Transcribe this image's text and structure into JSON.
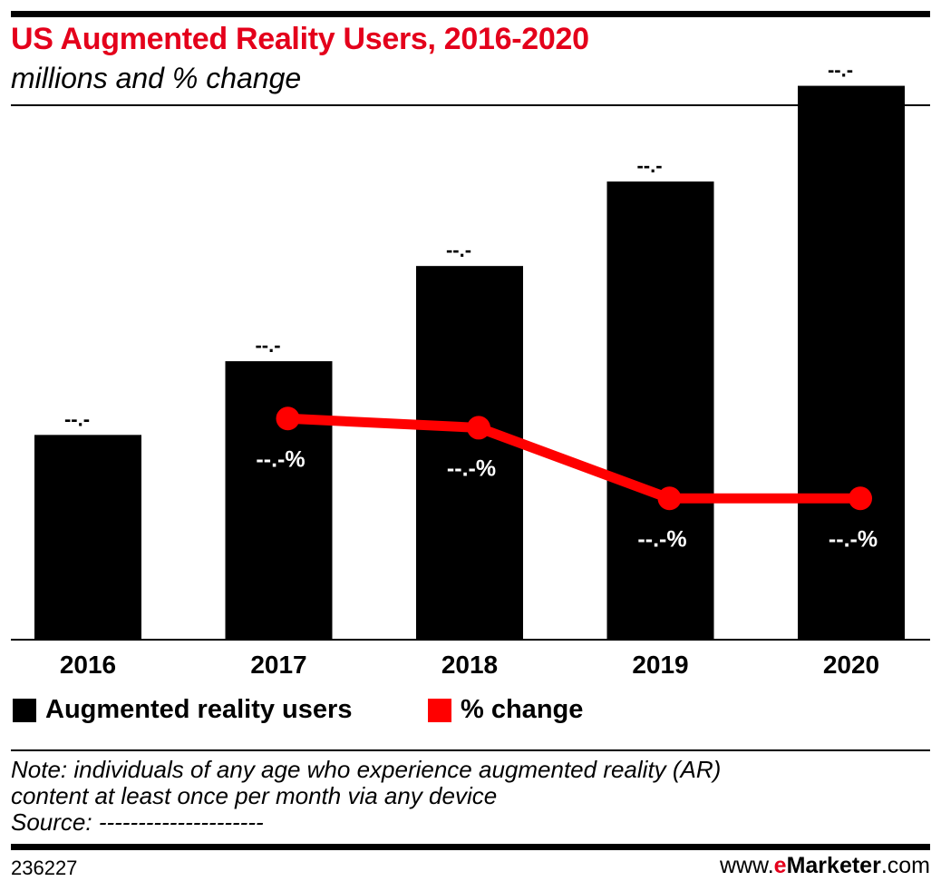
{
  "header": {
    "title": "US Augmented Reality Users, 2016-2020",
    "subtitle": "millions and % change"
  },
  "chart_data": {
    "type": "bar",
    "categories": [
      "2016",
      "2017",
      "2018",
      "2019",
      "2020"
    ],
    "series": [
      {
        "name": "Augmented reality users",
        "type": "bar",
        "values": [
          40.0,
          54.4,
          73.0,
          89.5,
          108.2
        ],
        "value_labels": [
          "--.-",
          "--.-",
          "--.-",
          "--.-",
          "--.-"
        ],
        "color": "#000000"
      },
      {
        "name": "% change",
        "type": "line",
        "values": [
          null,
          36.0,
          34.5,
          23.0,
          23.0
        ],
        "value_labels": [
          "",
          "--.-%",
          "--.-%",
          "--.-%",
          "--.-%"
        ],
        "color": "#ff0000"
      }
    ],
    "ylim": [
      0,
      120
    ],
    "ylim_pct": [
      0,
      100
    ],
    "legend": "bottom-left",
    "grid": false
  },
  "legend": {
    "items": [
      {
        "label": "Augmented reality users",
        "color": "#000000"
      },
      {
        "label": "% change",
        "color": "#ff0000"
      }
    ]
  },
  "note": {
    "line1": "Note: individuals of any age who experience augmented reality (AR)",
    "line2": "content at least once per month via any device",
    "source": "Source: ---------------------"
  },
  "footer": {
    "chart_id": "236227",
    "brand_prefix": "www.",
    "brand_e": "e",
    "brand_name": "Marketer",
    "brand_suffix": ".com"
  },
  "colors": {
    "title": "#e4001b",
    "bar": "#000000",
    "line": "#ff0000"
  }
}
